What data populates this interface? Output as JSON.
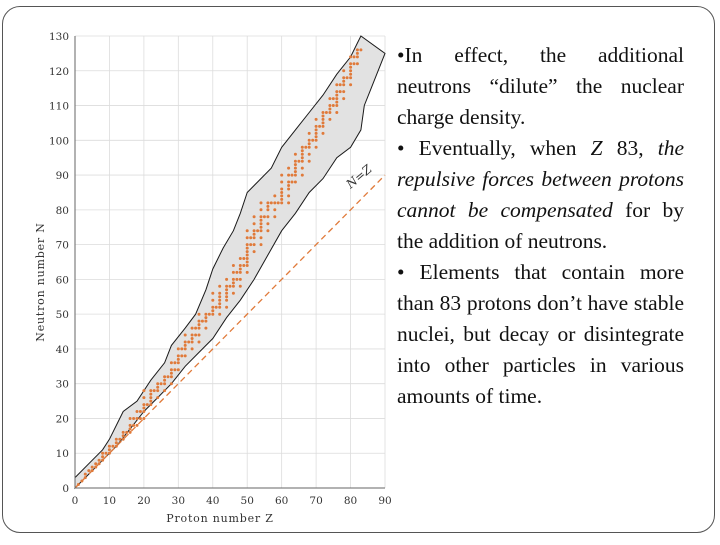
{
  "slide": {
    "b1_text": "•In effect, the additional neutrons “dilute” the nuclear charge density.",
    "b2_lead": "• Eventually, when ",
    "b2_z": "Z",
    "b2_num": " 83, ",
    "b2_italic": "the repulsive forces between protons cannot be compensated",
    "b2_tail": " for by the addition of neutrons.",
    "b3_text": "• Elements that contain more than 83 protons don’t have stable nuclei, but decay or disintegrate into other particles in various amounts of time."
  },
  "chart_data": {
    "type": "scatter",
    "xlabel": "Proton number Z",
    "ylabel": "Neutron number N",
    "xlim": [
      0,
      90
    ],
    "ylim": [
      0,
      130
    ],
    "xticks": [
      0,
      10,
      20,
      30,
      40,
      50,
      60,
      70,
      80,
      90
    ],
    "yticks": [
      0,
      10,
      20,
      30,
      40,
      50,
      60,
      70,
      80,
      90,
      100,
      110,
      120,
      130
    ],
    "reference_line": {
      "label": "N=Z",
      "from": [
        0,
        0
      ],
      "to": [
        90,
        90
      ]
    },
    "band_upper": [
      [
        0,
        3
      ],
      [
        4,
        7
      ],
      [
        8,
        11
      ],
      [
        10,
        14
      ],
      [
        14,
        22
      ],
      [
        18,
        25
      ],
      [
        22,
        31
      ],
      [
        26,
        36
      ],
      [
        28,
        41
      ],
      [
        32,
        46
      ],
      [
        35,
        50
      ],
      [
        38,
        57
      ],
      [
        40,
        63
      ],
      [
        43,
        69
      ],
      [
        46,
        74
      ],
      [
        48,
        79
      ],
      [
        50,
        85
      ],
      [
        53,
        88
      ],
      [
        57,
        92
      ],
      [
        60,
        98
      ],
      [
        64,
        103
      ],
      [
        68,
        108
      ],
      [
        72,
        113
      ],
      [
        76,
        119
      ],
      [
        80,
        124
      ],
      [
        82,
        128
      ],
      [
        83,
        130
      ]
    ],
    "band_lower": [
      [
        90,
        125
      ],
      [
        88,
        120
      ],
      [
        86,
        115
      ],
      [
        84,
        110
      ],
      [
        83,
        103
      ],
      [
        80,
        98
      ],
      [
        76,
        95
      ],
      [
        72,
        89
      ],
      [
        68,
        85
      ],
      [
        64,
        79
      ],
      [
        60,
        74
      ],
      [
        56,
        67
      ],
      [
        52,
        60
      ],
      [
        48,
        54
      ],
      [
        44,
        49
      ],
      [
        40,
        43
      ],
      [
        36,
        39
      ],
      [
        32,
        35
      ],
      [
        28,
        30
      ],
      [
        24,
        26
      ],
      [
        20,
        22
      ],
      [
        16,
        17
      ],
      [
        12,
        12
      ],
      [
        8,
        8
      ],
      [
        4,
        4
      ],
      [
        0,
        0
      ]
    ],
    "stable": [
      [
        1,
        1
      ],
      [
        2,
        2
      ],
      [
        3,
        3
      ],
      [
        3,
        4
      ],
      [
        4,
        5
      ],
      [
        5,
        5
      ],
      [
        5,
        6
      ],
      [
        6,
        6
      ],
      [
        6,
        7
      ],
      [
        7,
        7
      ],
      [
        7,
        8
      ],
      [
        8,
        8
      ],
      [
        8,
        9
      ],
      [
        8,
        10
      ],
      [
        9,
        10
      ],
      [
        10,
        10
      ],
      [
        10,
        11
      ],
      [
        10,
        12
      ],
      [
        11,
        12
      ],
      [
        12,
        12
      ],
      [
        12,
        13
      ],
      [
        12,
        14
      ],
      [
        13,
        14
      ],
      [
        14,
        14
      ],
      [
        14,
        15
      ],
      [
        14,
        16
      ],
      [
        15,
        16
      ],
      [
        16,
        16
      ],
      [
        16,
        17
      ],
      [
        16,
        18
      ],
      [
        16,
        20
      ],
      [
        17,
        18
      ],
      [
        17,
        20
      ],
      [
        18,
        18
      ],
      [
        18,
        20
      ],
      [
        18,
        22
      ],
      [
        19,
        20
      ],
      [
        19,
        22
      ],
      [
        20,
        20
      ],
      [
        20,
        22
      ],
      [
        20,
        23
      ],
      [
        20,
        24
      ],
      [
        20,
        26
      ],
      [
        20,
        28
      ],
      [
        21,
        24
      ],
      [
        22,
        24
      ],
      [
        22,
        25
      ],
      [
        22,
        26
      ],
      [
        22,
        27
      ],
      [
        22,
        28
      ],
      [
        23,
        28
      ],
      [
        24,
        26
      ],
      [
        24,
        28
      ],
      [
        24,
        29
      ],
      [
        24,
        30
      ],
      [
        25,
        30
      ],
      [
        26,
        28
      ],
      [
        26,
        30
      ],
      [
        26,
        31
      ],
      [
        26,
        32
      ],
      [
        27,
        32
      ],
      [
        28,
        30
      ],
      [
        28,
        32
      ],
      [
        28,
        33
      ],
      [
        28,
        34
      ],
      [
        28,
        36
      ],
      [
        29,
        34
      ],
      [
        29,
        36
      ],
      [
        30,
        34
      ],
      [
        30,
        36
      ],
      [
        30,
        37
      ],
      [
        30,
        38
      ],
      [
        30,
        40
      ],
      [
        31,
        38
      ],
      [
        31,
        40
      ],
      [
        32,
        38
      ],
      [
        32,
        40
      ],
      [
        32,
        41
      ],
      [
        32,
        42
      ],
      [
        32,
        44
      ],
      [
        33,
        42
      ],
      [
        34,
        40
      ],
      [
        34,
        42
      ],
      [
        34,
        43
      ],
      [
        34,
        44
      ],
      [
        34,
        46
      ],
      [
        35,
        44
      ],
      [
        35,
        46
      ],
      [
        36,
        42
      ],
      [
        36,
        44
      ],
      [
        36,
        46
      ],
      [
        36,
        47
      ],
      [
        36,
        48
      ],
      [
        36,
        50
      ],
      [
        37,
        48
      ],
      [
        38,
        46
      ],
      [
        38,
        48
      ],
      [
        38,
        49
      ],
      [
        38,
        50
      ],
      [
        39,
        50
      ],
      [
        40,
        50
      ],
      [
        40,
        51
      ],
      [
        40,
        52
      ],
      [
        40,
        54
      ],
      [
        40,
        56
      ],
      [
        41,
        52
      ],
      [
        42,
        50
      ],
      [
        42,
        52
      ],
      [
        42,
        53
      ],
      [
        42,
        54
      ],
      [
        42,
        55
      ],
      [
        42,
        56
      ],
      [
        42,
        58
      ],
      [
        44,
        52
      ],
      [
        44,
        54
      ],
      [
        44,
        55
      ],
      [
        44,
        56
      ],
      [
        44,
        57
      ],
      [
        44,
        58
      ],
      [
        44,
        60
      ],
      [
        45,
        58
      ],
      [
        46,
        56
      ],
      [
        46,
        58
      ],
      [
        46,
        59
      ],
      [
        46,
        60
      ],
      [
        46,
        62
      ],
      [
        46,
        64
      ],
      [
        47,
        60
      ],
      [
        47,
        62
      ],
      [
        48,
        58
      ],
      [
        48,
        60
      ],
      [
        48,
        62
      ],
      [
        48,
        63
      ],
      [
        48,
        64
      ],
      [
        48,
        66
      ],
      [
        49,
        64
      ],
      [
        49,
        66
      ],
      [
        50,
        62
      ],
      [
        50,
        64
      ],
      [
        50,
        65
      ],
      [
        50,
        66
      ],
      [
        50,
        67
      ],
      [
        50,
        68
      ],
      [
        50,
        69
      ],
      [
        50,
        70
      ],
      [
        50,
        72
      ],
      [
        50,
        74
      ],
      [
        51,
        70
      ],
      [
        51,
        72
      ],
      [
        52,
        68
      ],
      [
        52,
        70
      ],
      [
        52,
        72
      ],
      [
        52,
        73
      ],
      [
        52,
        74
      ],
      [
        52,
        76
      ],
      [
        52,
        78
      ],
      [
        53,
        74
      ],
      [
        54,
        70
      ],
      [
        54,
        72
      ],
      [
        54,
        74
      ],
      [
        54,
        75
      ],
      [
        54,
        76
      ],
      [
        54,
        77
      ],
      [
        54,
        78
      ],
      [
        54,
        80
      ],
      [
        54,
        82
      ],
      [
        55,
        78
      ],
      [
        56,
        74
      ],
      [
        56,
        76
      ],
      [
        56,
        78
      ],
      [
        56,
        80
      ],
      [
        56,
        81
      ],
      [
        56,
        82
      ],
      [
        57,
        82
      ],
      [
        58,
        78
      ],
      [
        58,
        80
      ],
      [
        58,
        82
      ],
      [
        58,
        84
      ],
      [
        59,
        82
      ],
      [
        60,
        82
      ],
      [
        60,
        83
      ],
      [
        60,
        84
      ],
      [
        60,
        85
      ],
      [
        60,
        86
      ],
      [
        60,
        88
      ],
      [
        60,
        90
      ],
      [
        62,
        82
      ],
      [
        62,
        84
      ],
      [
        62,
        86
      ],
      [
        62,
        87
      ],
      [
        62,
        88
      ],
      [
        62,
        90
      ],
      [
        62,
        92
      ],
      [
        63,
        88
      ],
      [
        63,
        90
      ],
      [
        64,
        88
      ],
      [
        64,
        90
      ],
      [
        64,
        91
      ],
      [
        64,
        92
      ],
      [
        64,
        93
      ],
      [
        64,
        94
      ],
      [
        64,
        96
      ],
      [
        65,
        94
      ],
      [
        66,
        90
      ],
      [
        66,
        92
      ],
      [
        66,
        94
      ],
      [
        66,
        95
      ],
      [
        66,
        96
      ],
      [
        66,
        97
      ],
      [
        66,
        98
      ],
      [
        67,
        98
      ],
      [
        68,
        94
      ],
      [
        68,
        96
      ],
      [
        68,
        98
      ],
      [
        68,
        99
      ],
      [
        68,
        100
      ],
      [
        68,
        102
      ],
      [
        69,
        100
      ],
      [
        70,
        98
      ],
      [
        70,
        100
      ],
      [
        70,
        101
      ],
      [
        70,
        102
      ],
      [
        70,
        103
      ],
      [
        70,
        104
      ],
      [
        70,
        106
      ],
      [
        71,
        104
      ],
      [
        72,
        102
      ],
      [
        72,
        104
      ],
      [
        72,
        105
      ],
      [
        72,
        106
      ],
      [
        72,
        107
      ],
      [
        72,
        108
      ],
      [
        73,
        108
      ],
      [
        74,
        106
      ],
      [
        74,
        108
      ],
      [
        74,
        109
      ],
      [
        74,
        110
      ],
      [
        74,
        112
      ],
      [
        75,
        110
      ],
      [
        75,
        112
      ],
      [
        76,
        108
      ],
      [
        76,
        110
      ],
      [
        76,
        111
      ],
      [
        76,
        112
      ],
      [
        76,
        113
      ],
      [
        76,
        114
      ],
      [
        76,
        116
      ],
      [
        77,
        114
      ],
      [
        77,
        116
      ],
      [
        78,
        112
      ],
      [
        78,
        114
      ],
      [
        78,
        116
      ],
      [
        78,
        117
      ],
      [
        78,
        118
      ],
      [
        78,
        120
      ],
      [
        79,
        118
      ],
      [
        80,
        116
      ],
      [
        80,
        118
      ],
      [
        80,
        119
      ],
      [
        80,
        120
      ],
      [
        80,
        121
      ],
      [
        80,
        122
      ],
      [
        80,
        124
      ],
      [
        81,
        122
      ],
      [
        81,
        124
      ],
      [
        82,
        122
      ],
      [
        82,
        124
      ],
      [
        82,
        125
      ],
      [
        82,
        126
      ],
      [
        83,
        126
      ]
    ]
  }
}
